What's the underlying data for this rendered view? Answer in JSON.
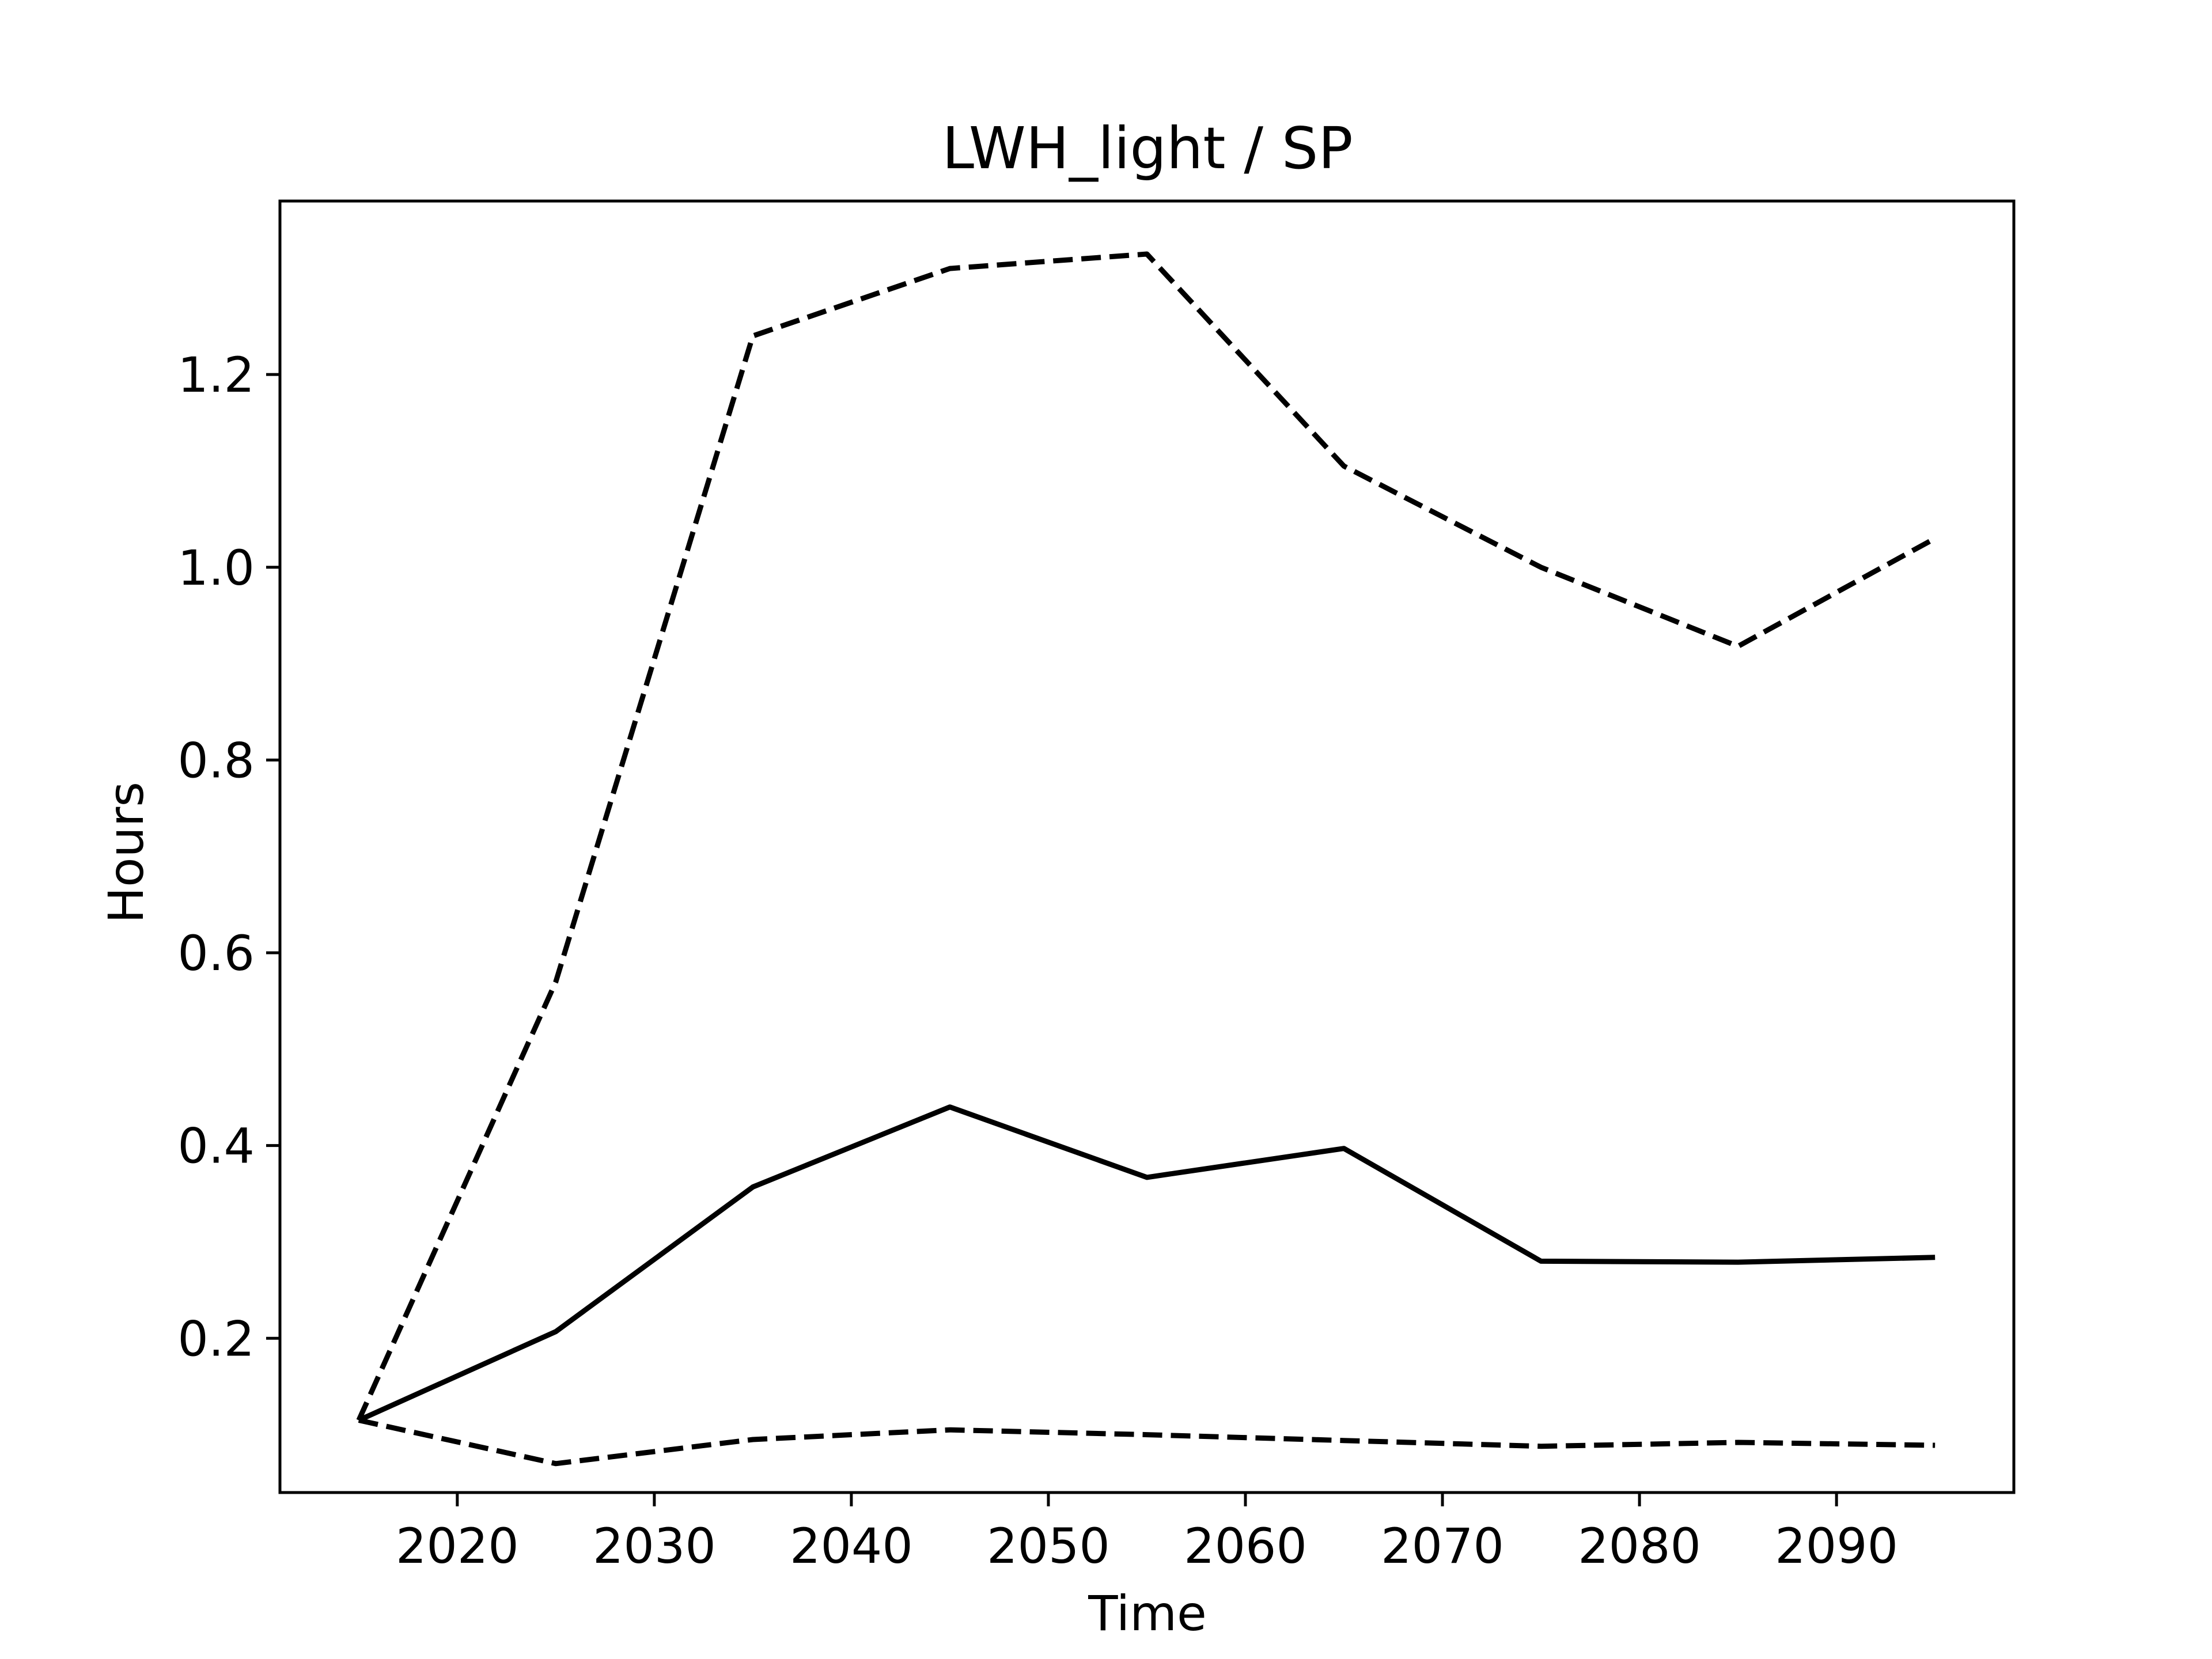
{
  "chart_data": {
    "type": "line",
    "title": "LWH_light / SP",
    "xlabel": "Time",
    "ylabel": "Hours",
    "xlim": [
      2011,
      2099
    ],
    "ylim": [
      0.04,
      1.38
    ],
    "xticks": [
      2020,
      2030,
      2040,
      2050,
      2060,
      2070,
      2080,
      2090
    ],
    "xtick_labels": [
      "2020",
      "2030",
      "2040",
      "2050",
      "2060",
      "2070",
      "2080",
      "2090"
    ],
    "yticks": [
      0.2,
      0.4,
      0.6,
      0.8,
      1.0,
      1.2
    ],
    "ytick_labels": [
      "0.2",
      "0.4",
      "0.6",
      "0.8",
      "1.0",
      "1.2"
    ],
    "grid": false,
    "legend": false,
    "x": [
      2015,
      2025,
      2035,
      2045,
      2055,
      2065,
      2075,
      2085,
      2095
    ],
    "series": [
      {
        "values": [
          0.115,
          0.57,
          1.24,
          1.31,
          1.325,
          1.105,
          1.0,
          0.918,
          1.03
        ],
        "style": "dashed",
        "color": "#000000"
      },
      {
        "values": [
          0.115,
          0.207,
          0.357,
          0.44,
          0.367,
          0.397,
          0.28,
          0.279,
          0.284
        ],
        "style": "solid",
        "color": "#000000"
      },
      {
        "values": [
          0.115,
          0.07,
          0.095,
          0.105,
          0.1,
          0.094,
          0.088,
          0.092,
          0.089
        ],
        "style": "dashed",
        "color": "#000000"
      }
    ]
  }
}
